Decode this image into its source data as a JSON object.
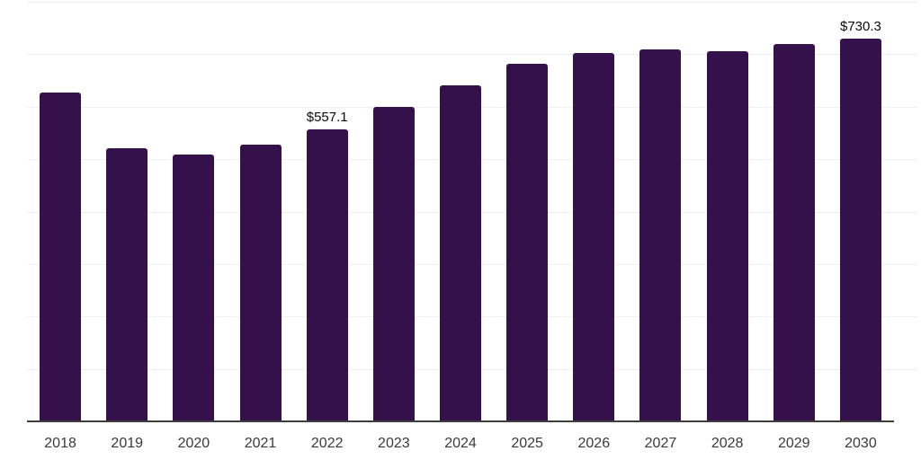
{
  "chart_data": {
    "type": "bar",
    "categories": [
      "2018",
      "2019",
      "2020",
      "2021",
      "2022",
      "2023",
      "2024",
      "2025",
      "2026",
      "2027",
      "2028",
      "2029",
      "2030"
    ],
    "values": [
      627,
      521,
      508,
      528,
      557.1,
      599,
      640,
      681,
      702,
      710,
      706,
      719,
      730.3
    ],
    "data_labels": {
      "2022": "$557.1",
      "2030": "$730.3"
    },
    "ylim": [
      0,
      800
    ],
    "gridline_step": 100,
    "grid": true,
    "legend": "none"
  },
  "colors": {
    "background": "#ffffff",
    "bar": "#34114a",
    "gridline": "#efefef",
    "axis_line": "#3f3f3f",
    "tick_label": "#3a3a3a",
    "data_label": "#0a0a0a"
  }
}
